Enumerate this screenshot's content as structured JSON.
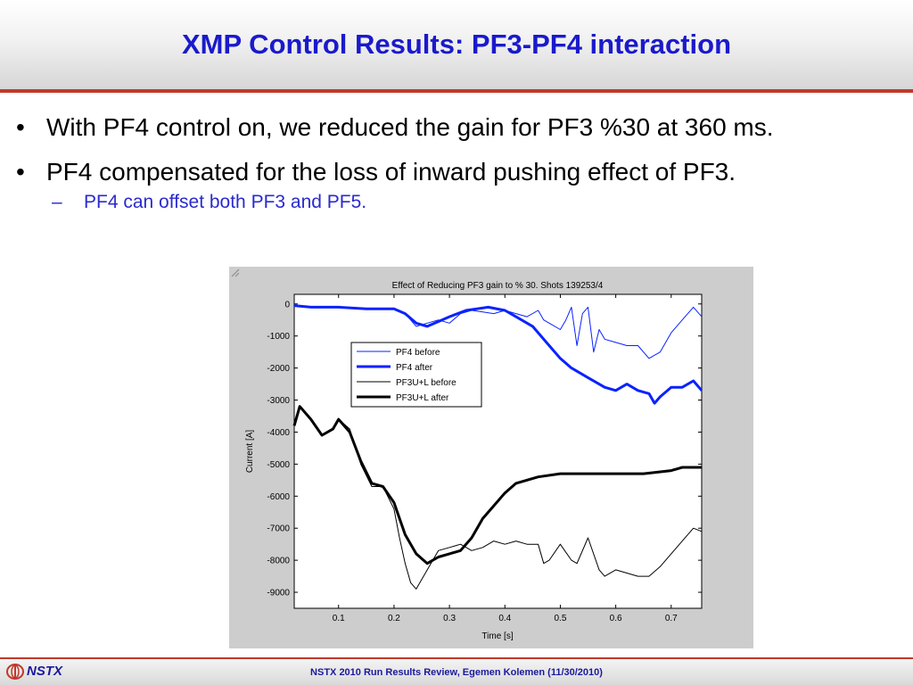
{
  "slide": {
    "title": "XMP Control Results: PF3-PF4 interaction",
    "bullets": [
      {
        "text": "With PF4 control on, we reduced the gain for PF3 %30 at 360 ms."
      },
      {
        "text": "PF4 compensated for the loss of inward pushing effect of PF3."
      }
    ],
    "sub_bullets": [
      {
        "text": "PF4 can offset both PF3 and PF5."
      }
    ],
    "bullet_glyph": "•",
    "dash_glyph": "–"
  },
  "footer": {
    "logo_text": "NSTX",
    "text": "NSTX 2010 Run Results Review,  Egemen Kolemen (11/30/2010)"
  },
  "colors": {
    "title": "#1a1acc",
    "accent_rule": "#c0392b",
    "sub_bullet": "#2a2ad0",
    "pf4_series": "#0a22ff",
    "pf3_series": "#000000"
  },
  "chart_data": {
    "type": "line",
    "title": "Effect of Reducing PF3 gain to % 30. Shots 139253/4",
    "xlabel": "Time [s]",
    "ylabel": "Current [A]",
    "xlim": [
      0.02,
      0.755
    ],
    "ylim": [
      -9500,
      300
    ],
    "xticks": [
      0.1,
      0.2,
      0.3,
      0.4,
      0.5,
      0.6,
      0.7
    ],
    "xtick_labels": [
      "0.1",
      "0.2",
      "0.3",
      "0.4",
      "0.5",
      "0.6",
      "0.7"
    ],
    "yticks": [
      0,
      -1000,
      -2000,
      -3000,
      -4000,
      -5000,
      -6000,
      -7000,
      -8000,
      -9000
    ],
    "ytick_labels": [
      "0",
      "-1000",
      "-2000",
      "-3000",
      "-4000",
      "-5000",
      "-6000",
      "-7000",
      "-8000",
      "-9000"
    ],
    "grid": false,
    "legend_position": "upper-left-center",
    "series": [
      {
        "name": "PF4 before",
        "color": "#0a22ff",
        "width": 1,
        "x": [
          0.02,
          0.05,
          0.1,
          0.15,
          0.2,
          0.22,
          0.24,
          0.26,
          0.28,
          0.3,
          0.32,
          0.34,
          0.36,
          0.38,
          0.4,
          0.42,
          0.44,
          0.46,
          0.47,
          0.48,
          0.5,
          0.51,
          0.52,
          0.53,
          0.54,
          0.55,
          0.56,
          0.57,
          0.58,
          0.6,
          0.62,
          0.64,
          0.66,
          0.68,
          0.7,
          0.72,
          0.74,
          0.755
        ],
        "y": [
          -50,
          -100,
          -100,
          -150,
          -150,
          -300,
          -700,
          -600,
          -500,
          -600,
          -300,
          -200,
          -250,
          -300,
          -200,
          -300,
          -400,
          -200,
          -500,
          -600,
          -800,
          -500,
          -100,
          -1300,
          -300,
          -100,
          -1500,
          -800,
          -1100,
          -1200,
          -1300,
          -1300,
          -1700,
          -1500,
          -900,
          -500,
          -100,
          -400
        ]
      },
      {
        "name": "PF4 after",
        "color": "#0a22ff",
        "width": 3,
        "x": [
          0.02,
          0.05,
          0.1,
          0.15,
          0.2,
          0.22,
          0.24,
          0.26,
          0.28,
          0.3,
          0.33,
          0.35,
          0.37,
          0.4,
          0.42,
          0.45,
          0.48,
          0.5,
          0.52,
          0.55,
          0.58,
          0.6,
          0.62,
          0.64,
          0.66,
          0.67,
          0.68,
          0.7,
          0.72,
          0.74,
          0.755
        ],
        "y": [
          -50,
          -100,
          -100,
          -150,
          -150,
          -300,
          -600,
          -700,
          -550,
          -400,
          -200,
          -150,
          -100,
          -200,
          -400,
          -700,
          -1300,
          -1700,
          -2000,
          -2300,
          -2600,
          -2700,
          -2500,
          -2700,
          -2800,
          -3100,
          -2900,
          -2600,
          -2600,
          -2400,
          -2700
        ]
      },
      {
        "name": "PF3U+L before",
        "color": "#000000",
        "width": 1,
        "x": [
          0.02,
          0.03,
          0.05,
          0.07,
          0.09,
          0.1,
          0.12,
          0.14,
          0.16,
          0.18,
          0.2,
          0.21,
          0.22,
          0.23,
          0.24,
          0.26,
          0.28,
          0.3,
          0.32,
          0.34,
          0.36,
          0.38,
          0.4,
          0.42,
          0.44,
          0.46,
          0.47,
          0.48,
          0.5,
          0.52,
          0.53,
          0.55,
          0.57,
          0.58,
          0.6,
          0.62,
          0.64,
          0.66,
          0.68,
          0.7,
          0.72,
          0.74,
          0.755
        ],
        "y": [
          -3800,
          -3200,
          -3600,
          -4100,
          -3900,
          -3600,
          -3900,
          -5000,
          -5700,
          -5700,
          -6400,
          -7300,
          -8100,
          -8700,
          -8900,
          -8300,
          -7700,
          -7600,
          -7500,
          -7700,
          -7600,
          -7400,
          -7500,
          -7400,
          -7500,
          -7500,
          -8100,
          -8000,
          -7500,
          -8000,
          -8100,
          -7300,
          -8300,
          -8500,
          -8300,
          -8400,
          -8500,
          -8500,
          -8200,
          -7800,
          -7400,
          -7000,
          -7100
        ]
      },
      {
        "name": "PF3U+L after",
        "color": "#000000",
        "width": 3,
        "x": [
          0.02,
          0.03,
          0.05,
          0.07,
          0.09,
          0.1,
          0.12,
          0.14,
          0.16,
          0.18,
          0.2,
          0.22,
          0.24,
          0.26,
          0.28,
          0.3,
          0.32,
          0.34,
          0.36,
          0.38,
          0.4,
          0.42,
          0.44,
          0.46,
          0.5,
          0.55,
          0.6,
          0.65,
          0.7,
          0.72,
          0.755
        ],
        "y": [
          -3800,
          -3200,
          -3600,
          -4100,
          -3900,
          -3600,
          -4000,
          -4900,
          -5600,
          -5700,
          -6200,
          -7200,
          -7800,
          -8100,
          -7900,
          -7800,
          -7700,
          -7300,
          -6700,
          -6300,
          -5900,
          -5600,
          -5500,
          -5400,
          -5300,
          -5300,
          -5300,
          -5300,
          -5200,
          -5100,
          -5100
        ]
      }
    ]
  }
}
